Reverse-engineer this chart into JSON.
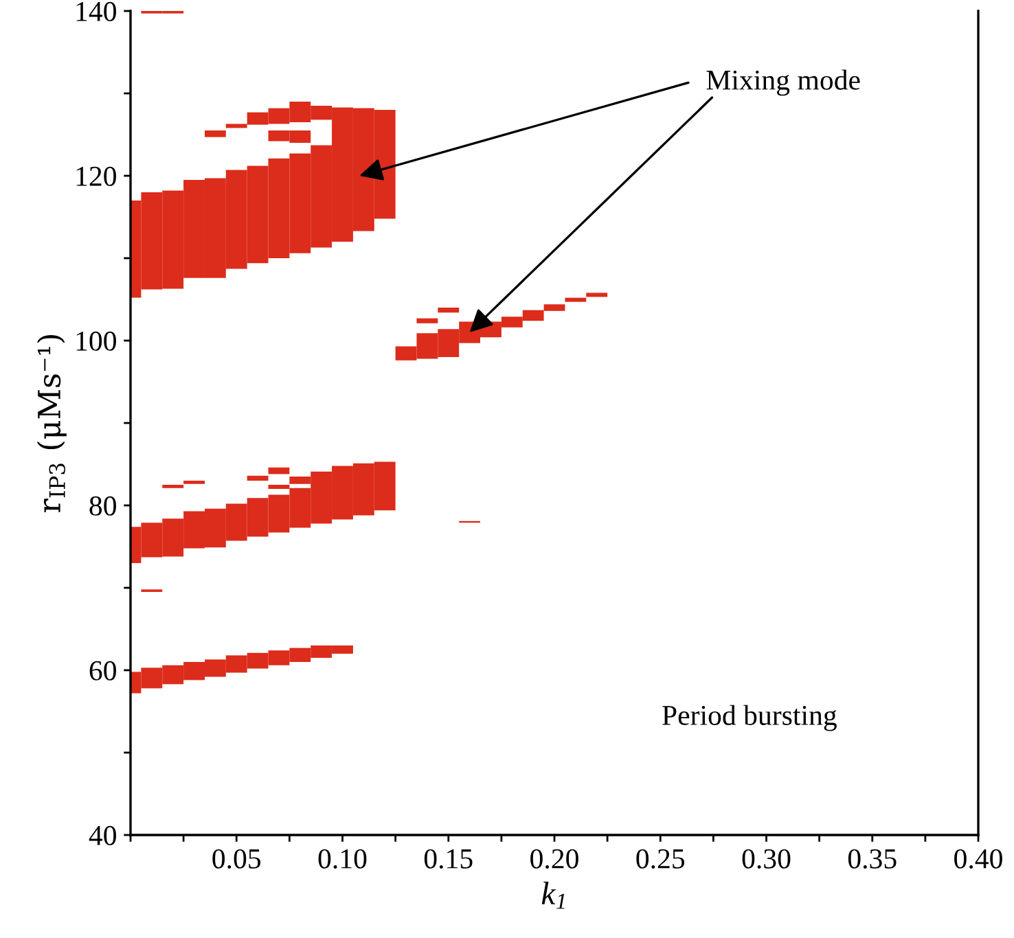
{
  "chart_data": {
    "type": "bar",
    "xlabel": "k$_{1}$",
    "ylabel": "r$_{IP3}$ (μMs⁻¹)",
    "xlim": [
      0,
      0.4
    ],
    "ylim": [
      40,
      140
    ],
    "xticks": [
      {
        "value": 0,
        "label": null
      },
      {
        "value": 0.025,
        "label": null
      },
      {
        "value": 0.05,
        "label": "0.05"
      },
      {
        "value": 0.075,
        "label": null
      },
      {
        "value": 0.1,
        "label": "0.10"
      },
      {
        "value": 0.125,
        "label": null
      },
      {
        "value": 0.15,
        "label": "0.15"
      },
      {
        "value": 0.175,
        "label": null
      },
      {
        "value": 0.2,
        "label": "0.20"
      },
      {
        "value": 0.225,
        "label": null
      },
      {
        "value": 0.25,
        "label": "0.25"
      },
      {
        "value": 0.275,
        "label": null
      },
      {
        "value": 0.3,
        "label": "0.30"
      },
      {
        "value": 0.325,
        "label": null
      },
      {
        "value": 0.35,
        "label": "0.35"
      },
      {
        "value": 0.375,
        "label": null
      },
      {
        "value": 0.4,
        "label": "0.40"
      }
    ],
    "yticks": [
      40,
      {
        "value": 50,
        "label": null
      },
      60,
      {
        "value": 70,
        "label": null
      },
      80,
      {
        "value": 90,
        "label": null
      },
      100,
      {
        "value": 110,
        "label": null
      },
      120,
      {
        "value": 130,
        "label": null
      },
      140
    ],
    "grid": false,
    "legend": false,
    "x": [
      0,
      0.01,
      0.02,
      0.03,
      0.04,
      0.05,
      0.06,
      0.07,
      0.08,
      0.09,
      0.1,
      0.11,
      0.12,
      0.13,
      0.14,
      0.15,
      0.16,
      0.17,
      0.18,
      0.19,
      0.2,
      0.21,
      0.22
    ],
    "series": [
      {
        "color": "#dc2c1b",
        "base": [
          57.2,
          57.8,
          58.3,
          58.8,
          59.2,
          59.7,
          60.2,
          60.6,
          61.0,
          61.5,
          62.0,
          78.8,
          79.4,
          97.6,
          97.8,
          98,
          77.9,
          100.4,
          101.6,
          102.4,
          103.6,
          104.7,
          105.3
        ],
        "values": [
          2.6,
          2.5,
          2.3,
          2.2,
          2.1,
          2.1,
          1.9,
          1.8,
          1.7,
          1.5,
          1.0,
          6.3,
          5.9,
          1.7,
          3.1,
          3.4,
          0.2,
          1.9,
          1.3,
          1.3,
          0.8,
          0.5,
          0.5
        ]
      },
      {
        "color": "#dc2c1b",
        "base": [
          73,
          69.5,
          73.8,
          74.8,
          74.9,
          75.7,
          76.2,
          76.7,
          77.3,
          77.8,
          78.3,
          113.3,
          114.8,
          null,
          102.1,
          103.4,
          99.7,
          null,
          null,
          null,
          null,
          null,
          null
        ],
        "values": [
          4.4,
          0.3,
          4.6,
          4.5,
          4.7,
          4.5,
          4.7,
          4.6,
          4.8,
          6.3,
          6.5,
          14.9,
          13.2,
          null,
          0.6,
          0.6,
          2.6,
          null,
          null,
          null,
          null,
          null,
          null
        ]
      },
      {
        "color": "#dc2c1b",
        "base": [
          105.2,
          73.7,
          82.1,
          82.6,
          107.6,
          108.7,
          83.0,
          82.0,
          82.6,
          111.3,
          112,
          null,
          null,
          null,
          null,
          null,
          null,
          null,
          null,
          null,
          null,
          null,
          null
        ],
        "values": [
          11.8,
          4.2,
          0.4,
          0.4,
          12.1,
          12,
          0.6,
          0.5,
          0.9,
          12.4,
          16.3,
          null,
          null,
          null,
          null,
          null,
          null,
          null,
          null,
          null,
          null,
          null,
          null
        ]
      },
      {
        "color": "#dc2c1b",
        "base": [
          null,
          106.2,
          106.3,
          107.6,
          124.7,
          125.8,
          109.4,
          83.8,
          110.6,
          126.8,
          null,
          null,
          null,
          null,
          null,
          null,
          null,
          null,
          null,
          null,
          null,
          null,
          null
        ],
        "values": [
          null,
          11.8,
          11.9,
          11.9,
          0.8,
          0.5,
          11.8,
          0.8,
          12.1,
          1.7,
          null,
          null,
          null,
          null,
          null,
          null,
          null,
          null,
          null,
          null,
          null,
          null,
          null
        ]
      },
      {
        "color": "#dc2c1b",
        "base": [
          null,
          139.7,
          139.7,
          null,
          null,
          null,
          126.2,
          110,
          124.0,
          null,
          null,
          null,
          null,
          null,
          null,
          null,
          null,
          null,
          null,
          null,
          null,
          null,
          null
        ],
        "values": [
          null,
          0.3,
          0.3,
          null,
          null,
          null,
          1.5,
          12.1,
          1.5,
          null,
          null,
          null,
          null,
          null,
          null,
          null,
          null,
          null,
          null,
          null,
          null,
          null,
          null
        ]
      },
      {
        "color": "#dc2c1b",
        "base": [
          null,
          null,
          null,
          null,
          null,
          null,
          null,
          124.2,
          126.5,
          null,
          null,
          null,
          null,
          null,
          null,
          null,
          null,
          null,
          null,
          null,
          null,
          null,
          null
        ],
        "values": [
          null,
          null,
          null,
          null,
          null,
          null,
          null,
          1.3,
          2.5,
          null,
          null,
          null,
          null,
          null,
          null,
          null,
          null,
          null,
          null,
          null,
          null,
          null,
          null
        ]
      },
      {
        "color": "#dc2c1b",
        "base": [
          null,
          null,
          null,
          null,
          null,
          null,
          null,
          126.3,
          null,
          null,
          null,
          null,
          null,
          null,
          null,
          null,
          null,
          null,
          null,
          null,
          null,
          null,
          null
        ],
        "values": [
          null,
          null,
          null,
          null,
          null,
          null,
          null,
          1.9,
          null,
          null,
          null,
          null,
          null,
          null,
          null,
          null,
          null,
          null,
          null,
          null,
          null,
          null,
          null
        ]
      }
    ],
    "annotations": [
      "Mixing mode",
      "Period bursting"
    ]
  }
}
